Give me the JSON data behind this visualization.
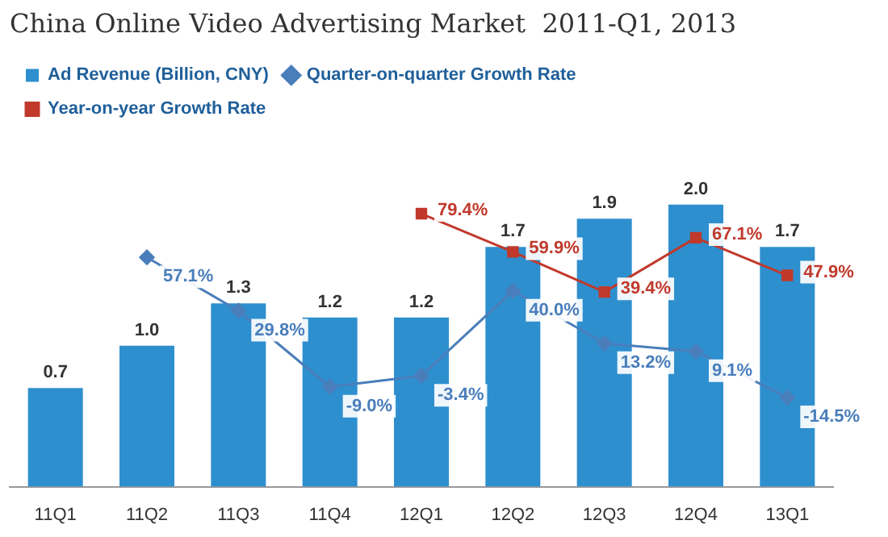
{
  "chart_data": {
    "type": "bar",
    "title": "China Online Video Advertising Market  2011-Q1, 2013",
    "categories": [
      "11Q1",
      "11Q2",
      "11Q3",
      "11Q4",
      "12Q1",
      "12Q2",
      "12Q3",
      "12Q4",
      "13Q1"
    ],
    "series": [
      {
        "name": "Ad Revenue (Billion, CNY)",
        "color": "#2e8fcf",
        "values": [
          0.7,
          1.0,
          1.3,
          1.2,
          1.2,
          1.7,
          1.9,
          2.0,
          1.7
        ],
        "value_labels": [
          "0.7",
          "1.0",
          "1.3",
          "1.2",
          "1.2",
          "1.7",
          "1.9",
          "2.0",
          "1.7"
        ]
      },
      {
        "name": "Quarter-on-quarter Growth Rate",
        "type": "line",
        "axis": "y2",
        "marker": "diamond",
        "color": "#4a7ebb",
        "values": [
          null,
          57.1,
          29.8,
          -9.0,
          -3.4,
          40.0,
          13.2,
          9.1,
          -14.5
        ],
        "value_labels": [
          null,
          "57.1%",
          "29.8%",
          "-9.0%",
          "-3.4%",
          "40.0%",
          "13.2%",
          "9.1%",
          "-14.5%"
        ]
      },
      {
        "name": "Year-on-year Growth Rate",
        "type": "line",
        "axis": "y2",
        "marker": "square",
        "color": "#c0392b",
        "values": [
          null,
          null,
          null,
          null,
          79.4,
          59.9,
          39.4,
          67.1,
          47.9
        ],
        "value_labels": [
          null,
          null,
          null,
          null,
          "79.4%",
          "59.9%",
          "39.4%",
          "67.1%",
          "47.9%"
        ]
      }
    ],
    "tick_labels": "x",
    "legend": "top",
    "grid": false
  }
}
